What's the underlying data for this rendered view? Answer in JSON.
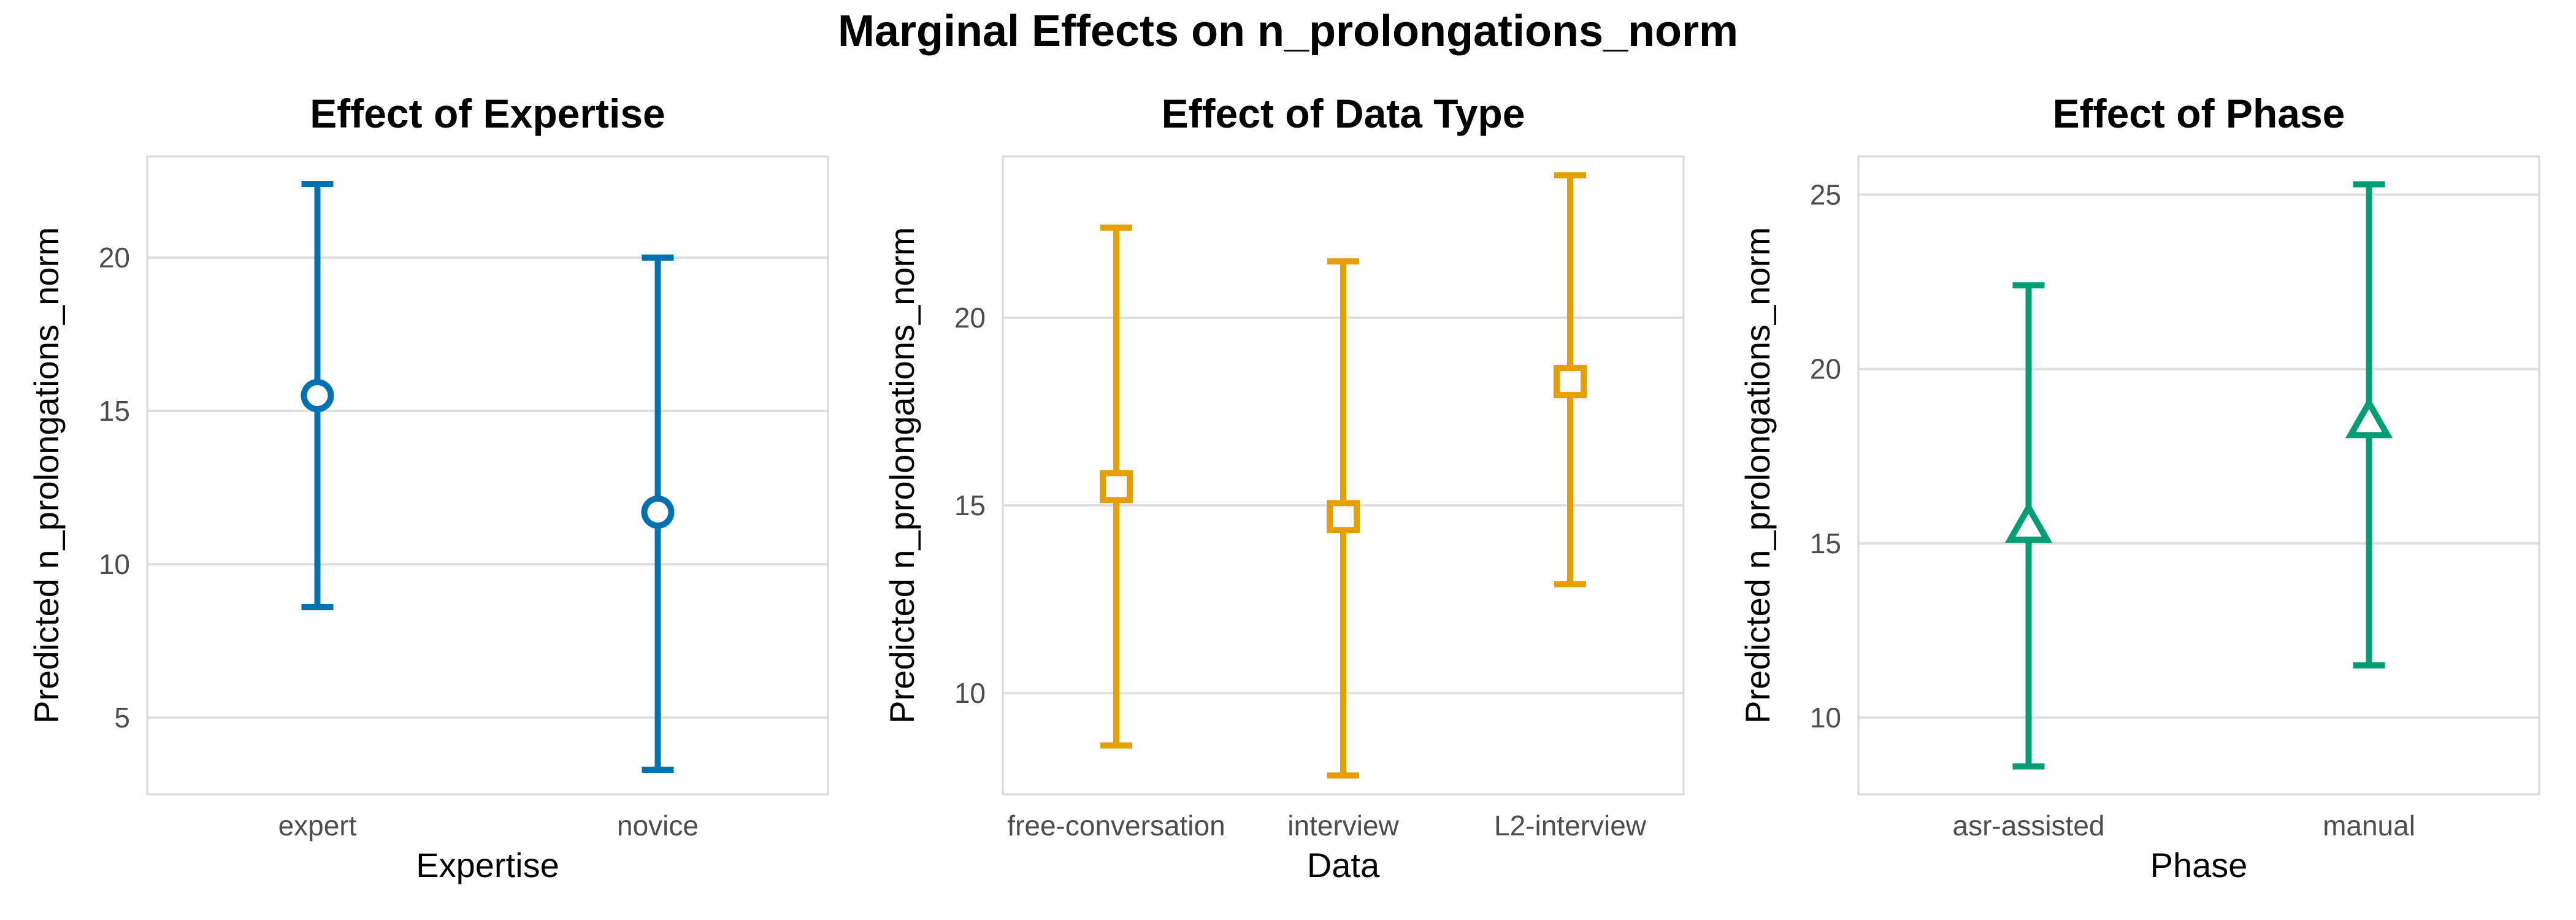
{
  "title": "Marginal Effects on n_prolongations_norm",
  "chart_data": [
    {
      "type": "errorbar",
      "title": "Effect of Expertise",
      "xlabel": "Expertise",
      "ylabel": "Predicted n_prolongations_norm",
      "categories": [
        "expert",
        "novice"
      ],
      "estimate": [
        15.5,
        11.7
      ],
      "lower": [
        8.6,
        3.3
      ],
      "upper": [
        22.4,
        20.0
      ],
      "ylim": [
        2.5,
        23.3
      ],
      "yticks": [
        5,
        10,
        15,
        20
      ],
      "marker": "circle",
      "color": "#0072B2",
      "grid": true
    },
    {
      "type": "errorbar",
      "title": "Effect of Data Type",
      "xlabel": "Data",
      "ylabel": "Predicted n_prolongations_norm",
      "categories": [
        "free-conversation",
        "interview",
        "L2-interview"
      ],
      "estimate": [
        15.5,
        14.7,
        18.3
      ],
      "lower": [
        8.6,
        7.8,
        12.9
      ],
      "upper": [
        22.4,
        21.5,
        23.8
      ],
      "ylim": [
        7.3,
        24.3
      ],
      "yticks": [
        10,
        15,
        20
      ],
      "marker": "square",
      "color": "#E69F00",
      "grid": true
    },
    {
      "type": "errorbar",
      "title": "Effect of Phase",
      "xlabel": "Phase",
      "ylabel": "Predicted n_prolongations_norm",
      "categories": [
        "asr-assisted",
        "manual"
      ],
      "estimate": [
        15.5,
        18.5
      ],
      "lower": [
        8.6,
        11.5
      ],
      "upper": [
        22.4,
        25.3
      ],
      "ylim": [
        7.8,
        26.1
      ],
      "yticks": [
        10,
        15,
        20,
        25
      ],
      "marker": "triangle",
      "color": "#009E73",
      "grid": true
    }
  ]
}
